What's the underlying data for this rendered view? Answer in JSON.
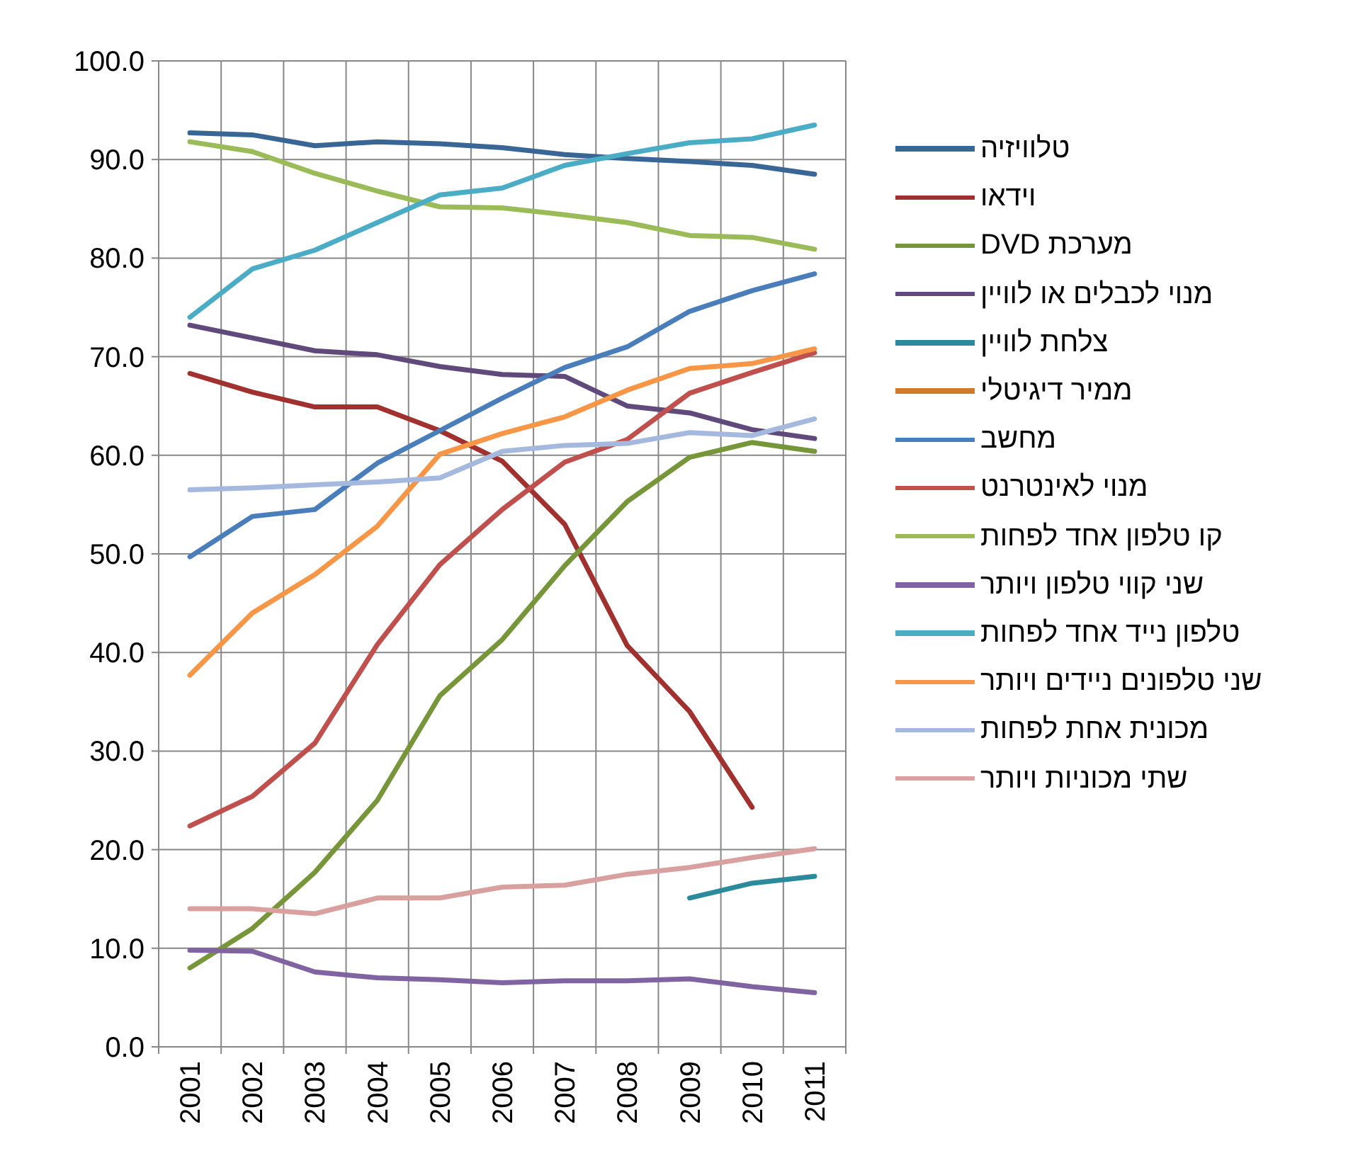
{
  "chart_data": {
    "type": "line",
    "categories": [
      "2001",
      "2002",
      "2003",
      "2004",
      "2005",
      "2006",
      "2007",
      "2008",
      "2009",
      "2010",
      "2011"
    ],
    "ylim": [
      0,
      100
    ],
    "yticks": [
      {
        "value": 0,
        "label": "0.0"
      },
      {
        "value": 10,
        "label": "10.0"
      },
      {
        "value": 20,
        "label": "20.0"
      },
      {
        "value": 30,
        "label": "30.0"
      },
      {
        "value": 40,
        "label": "40.0"
      },
      {
        "value": 50,
        "label": "50.0"
      },
      {
        "value": 60,
        "label": "60.0"
      },
      {
        "value": 70,
        "label": "70.0"
      },
      {
        "value": 80,
        "label": "80.0"
      },
      {
        "value": 90,
        "label": "90.0"
      },
      {
        "value": 100,
        "label": "100.0"
      }
    ],
    "grid": true,
    "legend": "right",
    "marker": "none",
    "line_style": "solid",
    "series": [
      {
        "name": "טלוויזיה",
        "color": "#3a6696",
        "values": [
          92.7,
          92.5,
          91.4,
          91.8,
          91.6,
          91.2,
          90.5,
          90.1,
          89.8,
          89.4,
          88.5
        ]
      },
      {
        "name": "וידאו",
        "color": "#a0312e",
        "values": [
          68.3,
          66.4,
          64.9,
          64.9,
          62.5,
          59.4,
          53.0,
          40.7,
          34.0,
          24.3,
          null
        ]
      },
      {
        "name": "מערכת DVD",
        "color": "#77963a",
        "values": [
          8.0,
          12.0,
          17.7,
          25.0,
          35.6,
          41.3,
          48.8,
          55.3,
          59.8,
          61.3,
          60.4
        ]
      },
      {
        "name": "מנוי לכבלים או לוויין",
        "color": "#60497b",
        "values": [
          73.2,
          71.9,
          70.6,
          70.2,
          69.0,
          68.2,
          68.0,
          65.0,
          64.3,
          62.6,
          61.7
        ]
      },
      {
        "name": "צלחת לוויין",
        "color": "#2b8a9b",
        "values": [
          null,
          null,
          null,
          null,
          null,
          null,
          null,
          null,
          15.1,
          16.6,
          17.3
        ]
      },
      {
        "name": "ממיר דיגיטלי",
        "color": "#d27a2c",
        "values": [
          null,
          null,
          null,
          null,
          null,
          null,
          null,
          null,
          null,
          null,
          null
        ]
      },
      {
        "name": "מחשב",
        "color": "#4a7ebb",
        "values": [
          49.7,
          53.8,
          54.5,
          59.2,
          62.5,
          65.8,
          68.9,
          71.0,
          74.6,
          76.7,
          78.4
        ]
      },
      {
        "name": "מנוי לאינטרנט",
        "color": "#c0504d",
        "values": [
          22.4,
          25.4,
          30.8,
          40.8,
          48.9,
          54.5,
          59.3,
          61.6,
          66.3,
          68.4,
          70.4
        ]
      },
      {
        "name": "קו טלפון אחד לפחות",
        "color": "#9bbb59",
        "values": [
          91.8,
          90.8,
          88.6,
          86.8,
          85.2,
          85.1,
          84.4,
          83.6,
          82.3,
          82.1,
          80.9
        ]
      },
      {
        "name": "שני קווי טלפון ויותר",
        "color": "#8064a2",
        "values": [
          9.8,
          9.7,
          7.6,
          7.0,
          6.8,
          6.5,
          6.7,
          6.7,
          6.9,
          6.1,
          5.5
        ]
      },
      {
        "name": "טלפון נייד אחד לפחות",
        "color": "#4bacc6",
        "values": [
          74.0,
          78.9,
          80.8,
          83.6,
          86.4,
          87.1,
          89.4,
          90.6,
          91.7,
          92.1,
          93.5
        ]
      },
      {
        "name": "שני טלפונים ניידים ויותר",
        "color": "#f79646",
        "values": [
          37.7,
          44.0,
          47.9,
          52.8,
          60.1,
          62.2,
          63.9,
          66.6,
          68.8,
          69.3,
          70.8
        ]
      },
      {
        "name": "מכונית אחת לפחות",
        "color": "#a5b8de",
        "values": [
          56.5,
          56.7,
          57.0,
          57.3,
          57.7,
          60.4,
          61.0,
          61.2,
          62.3,
          62.0,
          63.7
        ]
      },
      {
        "name": "שתי מכוניות ויותר",
        "color": "#d8a19f",
        "values": [
          14.0,
          14.0,
          13.5,
          15.1,
          15.1,
          16.2,
          16.4,
          17.5,
          18.2,
          19.2,
          20.1
        ]
      }
    ]
  }
}
